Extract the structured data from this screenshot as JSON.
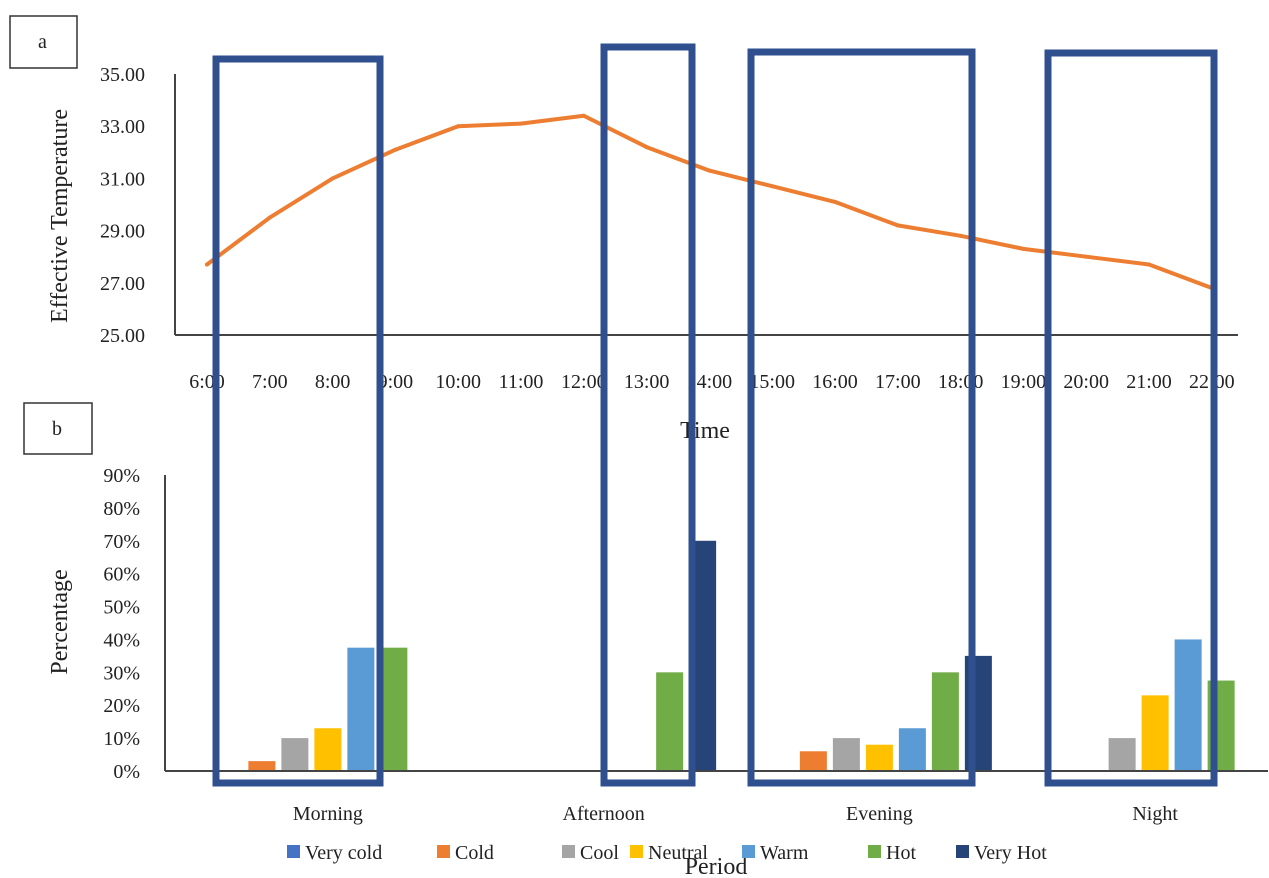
{
  "panels": [
    {
      "label": "a",
      "chart_data": {
        "type": "line",
        "title": "",
        "xlabel": "Time",
        "ylabel": "Effective Temperature",
        "x": [
          "6:00",
          "7:00",
          "8:00",
          "9:00",
          "10:00",
          "11:00",
          "12:00",
          "13:00",
          "14:00",
          "15:00",
          "16:00",
          "17:00",
          "18:00",
          "19:00",
          "20:00",
          "21:00",
          "22:00"
        ],
        "series": [
          {
            "color": "#ED7D31",
            "values": [
              27.7,
              29.5,
              31.0,
              32.1,
              33.0,
              33.1,
              33.4,
              32.2,
              31.3,
              30.7,
              30.1,
              29.2,
              28.8,
              28.3,
              28.0,
              27.7,
              26.8
            ]
          }
        ],
        "ylim": [
          25,
          35
        ],
        "yticks": [
          "25.00",
          "27.00",
          "29.00",
          "31.00",
          "33.00",
          "35.00"
        ],
        "grid": false
      }
    },
    {
      "label": "b",
      "chart_data": {
        "type": "bar",
        "title": "",
        "xlabel": "Period",
        "ylabel": "Percentage",
        "categories": [
          "Morning",
          "Afternoon",
          "Evening",
          "Night"
        ],
        "series": [
          {
            "name": "Very cold",
            "color": "#4472C4",
            "values": [
              0,
              0,
              0,
              0
            ]
          },
          {
            "name": "Cold",
            "color": "#ED7D31",
            "values": [
              3,
              0,
              6,
              0
            ]
          },
          {
            "name": "Cool",
            "color": "#A5A5A5",
            "values": [
              10,
              0,
              10,
              10
            ]
          },
          {
            "name": "Neutral",
            "color": "#FFC000",
            "values": [
              13,
              0,
              8,
              23
            ]
          },
          {
            "name": "Warm",
            "color": "#5B9BD5",
            "values": [
              37.5,
              0,
              13,
              40
            ]
          },
          {
            "name": "Hot",
            "color": "#70AD47",
            "values": [
              37.5,
              30,
              30,
              27.5
            ]
          },
          {
            "name": "Very Hot",
            "color": "#264478",
            "values": [
              0,
              70,
              35,
              0
            ]
          }
        ],
        "ylim": [
          0,
          90
        ],
        "yticks": [
          "0%",
          "10%",
          "20%",
          "30%",
          "40%",
          "50%",
          "60%",
          "70%",
          "80%",
          "90%"
        ],
        "legend": "bottom",
        "grid": false
      }
    }
  ],
  "highlight_color": "#2F4F8F"
}
